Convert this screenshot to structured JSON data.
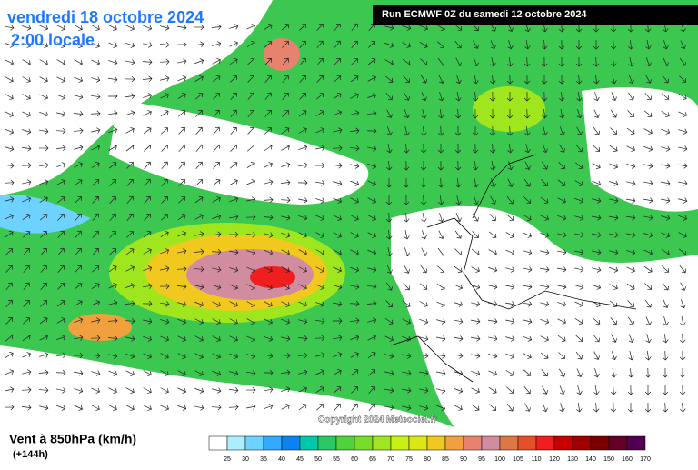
{
  "header": {
    "date": "vendredi 18 octobre 2024",
    "time": "2:00 locale",
    "run": "Run ECMWF 0Z du samedi 12 octobre 2024"
  },
  "map": {
    "copyright": "Copyright 2024 Meteociel.fr"
  },
  "footer": {
    "title": "Vent à 850hPa (km/h)",
    "lead": "(+144h)",
    "legend": [
      {
        "label": "25",
        "color": "#ffffff"
      },
      {
        "label": "30",
        "color": "#aaeeff"
      },
      {
        "label": "35",
        "color": "#6ed2ff"
      },
      {
        "label": "40",
        "color": "#32aaff"
      },
      {
        "label": "45",
        "color": "#0a82f0"
      },
      {
        "label": "50",
        "color": "#00c8aa"
      },
      {
        "label": "55",
        "color": "#28c864"
      },
      {
        "label": "60",
        "color": "#50d23c"
      },
      {
        "label": "65",
        "color": "#78dc28"
      },
      {
        "label": "70",
        "color": "#a0e61e"
      },
      {
        "label": "75",
        "color": "#c8f014"
      },
      {
        "label": "80",
        "color": "#dce614"
      },
      {
        "label": "85",
        "color": "#f0c81e"
      },
      {
        "label": "90",
        "color": "#f0a03c"
      },
      {
        "label": "95",
        "color": "#e6826e"
      },
      {
        "label": "100",
        "color": "#d28ca0"
      },
      {
        "label": "105",
        "color": "#dc7846"
      },
      {
        "label": "110",
        "color": "#e65028"
      },
      {
        "label": "120",
        "color": "#f01e1e"
      },
      {
        "label": "130",
        "color": "#c80000"
      },
      {
        "label": "140",
        "color": "#a00000"
      },
      {
        "label": "150",
        "color": "#780000"
      },
      {
        "label": "160",
        "color": "#640028"
      },
      {
        "label": "170",
        "color": "#500050"
      }
    ]
  }
}
